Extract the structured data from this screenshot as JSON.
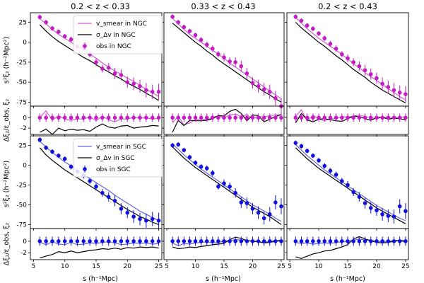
{
  "figure": {
    "column_titles": [
      "0.2 < z < 0.33",
      "0.33 < z < 0.43",
      "0.2 < z < 0.43"
    ],
    "ylabel_main": "s²ξ₂ (h⁻²Mpc²)",
    "ylabel_resid": "Δξ₂/ε_obs, ξ₂",
    "xlabel": "s (h⁻¹Mpc)"
  },
  "legends": {
    "ngc": [
      "v_smear in NGC",
      "σ_Δv in NGC",
      "obs in NGC"
    ],
    "sgc": [
      "v_smear in SGC",
      "σ_Δv in SGC",
      "obs in SGC"
    ]
  },
  "colors": {
    "ngc_obs": "#c41cc4",
    "ngc_model": "#d45bd4",
    "sgc_obs": "#1010dd",
    "sgc_model": "#6464e8",
    "sigma": "#000000"
  },
  "chart_data": {
    "type": "line",
    "x": [
      6,
      7,
      8,
      9,
      10,
      11,
      12,
      13,
      14,
      15,
      16,
      17,
      18,
      19,
      20,
      21,
      22,
      23,
      24,
      25
    ],
    "xlim": [
      4.5,
      25.5
    ],
    "xticks": [
      5,
      10,
      15,
      20,
      25
    ],
    "main_ylim": [
      -80,
      37
    ],
    "main_yticks": [
      25,
      0,
      -25,
      -50,
      -75
    ],
    "resid_ylim": [
      -3.2,
      2.2
    ],
    "resid_yticks": [
      0,
      -2
    ],
    "panels": [
      {
        "region": "NGC",
        "column": 0,
        "obs": [
          31.5,
          25,
          17.5,
          13.2,
          7.5,
          3.5,
          -5.5,
          -6,
          -15,
          -25,
          -33,
          -32,
          -39,
          -41,
          -50,
          -52,
          -55,
          -60,
          -62,
          -62
        ],
        "err": [
          3,
          3,
          3,
          3,
          3,
          3.5,
          3.5,
          4,
          4,
          5,
          5,
          6,
          7,
          7,
          7,
          8,
          8,
          9,
          9,
          10
        ],
        "vsmear": [
          30,
          23,
          16,
          10,
          5,
          0,
          -5,
          -10,
          -15,
          -20,
          -26,
          -31,
          -36,
          -40,
          -45,
          -49,
          -54,
          -59,
          -63,
          -68
        ],
        "sigma": [
          22,
          14,
          7,
          1,
          -4,
          -9,
          -14,
          -19,
          -23,
          -28,
          -33,
          -37,
          -42,
          -46,
          -51,
          -55,
          -59,
          -64,
          -68,
          -73
        ]
      },
      {
        "region": "NGC",
        "column": 1,
        "obs": [
          32,
          25,
          19,
          14,
          9,
          3,
          -3,
          -8,
          -15,
          -19,
          -24,
          -25,
          -30,
          -39,
          -51,
          -55,
          -59,
          -62,
          -70,
          -80
        ],
        "err": [
          3,
          3,
          3,
          3,
          3,
          3.5,
          3.5,
          4,
          4,
          5,
          5,
          6,
          7,
          7,
          7,
          8,
          8,
          9,
          9,
          10
        ],
        "vsmear": [
          30,
          23,
          16,
          10,
          5,
          0,
          -5,
          -10,
          -15,
          -20,
          -26,
          -31,
          -36,
          -41,
          -46,
          -51,
          -56,
          -61,
          -66,
          -71
        ],
        "sigma": [
          24,
          18,
          12,
          6,
          0,
          -5,
          -11,
          -16,
          -22,
          -27,
          -32,
          -37,
          -42,
          -47,
          -52,
          -57,
          -62,
          -66,
          -71,
          -75
        ]
      },
      {
        "region": "NGC",
        "column": 2,
        "obs": [
          32,
          27,
          21,
          17,
          11,
          5,
          -2,
          -8,
          -15,
          -20,
          -25,
          -30,
          -35,
          -40,
          -45,
          -52,
          -56,
          -60,
          -63,
          -65
        ],
        "err": [
          3,
          3,
          3,
          3,
          3,
          3.5,
          3.5,
          4,
          4,
          5,
          5,
          6,
          7,
          7,
          7,
          8,
          8,
          9,
          9,
          10
        ],
        "vsmear": [
          31,
          24,
          17,
          11,
          5,
          0,
          -5,
          -10,
          -15,
          -21,
          -27,
          -32,
          -38,
          -43,
          -48,
          -53,
          -58,
          -63,
          -68,
          -72
        ],
        "sigma": [
          25,
          18,
          12,
          6,
          0,
          -5,
          -11,
          -17,
          -22,
          -28,
          -34,
          -39,
          -44,
          -50,
          -55,
          -60,
          -64,
          -68,
          -72,
          -76
        ]
      },
      {
        "region": "SGC",
        "column": 0,
        "obs": [
          32,
          22,
          17,
          12,
          8,
          -2,
          -8,
          -13,
          -20,
          -27,
          -35,
          -40,
          -45,
          -55,
          -60,
          -65,
          -68,
          -70,
          -68,
          -70
        ],
        "err": [
          3,
          3,
          3,
          3,
          3,
          3.5,
          3.5,
          4,
          4,
          5,
          5,
          6,
          7,
          7,
          7,
          8,
          8,
          9,
          9,
          10
        ],
        "vsmear": [
          30,
          23,
          16,
          10,
          4,
          -1,
          -7,
          -12,
          -17,
          -22,
          -27,
          -32,
          -38,
          -43,
          -48,
          -53,
          -58,
          -62,
          -66,
          -70
        ],
        "sigma": [
          22,
          13,
          6,
          0,
          -6,
          -11,
          -16,
          -21,
          -26,
          -31,
          -36,
          -41,
          -46,
          -51,
          -56,
          -60,
          -65,
          -68,
          -72,
          -75
        ]
      },
      {
        "region": "SGC",
        "column": 1,
        "obs": [
          25,
          26,
          19,
          10,
          3,
          -2,
          -4,
          -10,
          -27,
          -23,
          -27,
          -35,
          -47,
          -48,
          -55,
          -60,
          -67,
          -62,
          -47,
          -52
        ],
        "err": [
          3,
          3,
          3,
          3,
          3,
          3.5,
          3.5,
          4,
          4,
          5,
          5,
          6,
          7,
          7,
          7,
          8,
          8,
          9,
          9,
          10
        ],
        "vsmear": [
          27,
          20,
          13,
          7,
          1,
          -5,
          -10,
          -15,
          -20,
          -25,
          -30,
          -35,
          -40,
          -45,
          -50,
          -54,
          -58,
          -62,
          -67,
          -71
        ],
        "sigma": [
          23,
          16,
          9,
          3,
          -3,
          -8,
          -13,
          -18,
          -23,
          -28,
          -33,
          -38,
          -43,
          -48,
          -53,
          -57,
          -61,
          -65,
          -70,
          -75
        ]
      },
      {
        "region": "SGC",
        "column": 2,
        "obs": [
          28,
          24,
          18,
          12,
          6,
          -1,
          -7,
          -12,
          -20,
          -25,
          -34,
          -40,
          -48,
          -54,
          -57,
          -62,
          -64,
          -65,
          -52,
          -58
        ],
        "err": [
          3,
          3,
          3,
          3,
          3,
          3.5,
          3.5,
          4,
          4,
          5,
          5,
          6,
          7,
          7,
          7,
          8,
          8,
          9,
          9,
          10
        ],
        "vsmear": [
          26,
          19,
          12,
          6,
          0,
          -6,
          -11,
          -16,
          -21,
          -26,
          -31,
          -36,
          -41,
          -46,
          -51,
          -55,
          -59,
          -63,
          -67,
          -70
        ],
        "sigma": [
          22,
          15,
          8,
          2,
          -4,
          -9,
          -14,
          -19,
          -24,
          -29,
          -34,
          -39,
          -44,
          -49,
          -54,
          -58,
          -62,
          -66,
          -70,
          -74
        ]
      }
    ],
    "residuals": [
      {
        "region": "NGC",
        "column": 0,
        "obs": [
          0,
          0,
          0,
          0,
          0,
          0,
          0,
          0,
          0,
          0,
          0,
          0,
          0,
          0,
          0,
          0,
          0,
          0,
          0,
          0
        ],
        "err": [
          0.8,
          0.8,
          0.8,
          0.8,
          0.8,
          0.8,
          0.8,
          0.8,
          0.8,
          0.8,
          0.8,
          0.8,
          0.8,
          0.8,
          0.8,
          0.8,
          0.8,
          0.8,
          0.8,
          0.8
        ],
        "vsmear": [
          0,
          1.3,
          -0.5,
          0.4,
          -0.3,
          -0.5,
          -0.2,
          -0.3,
          0.2,
          -0.6,
          0.3,
          -0.4,
          -0.8,
          -0.2,
          -0.3,
          0.1,
          -0.1,
          0,
          -0.3,
          -0.1
        ],
        "sigma": [
          -2.8,
          -2.2,
          -3.2,
          -2,
          -2.5,
          -2.2,
          -2.4,
          -2.3,
          -2.6,
          -1.8,
          -1.2,
          -1.8,
          -2,
          -1.6,
          -1.5,
          -2,
          -1.8,
          -1.7,
          -1.5,
          -1.6
        ]
      },
      {
        "region": "NGC",
        "column": 1,
        "obs": [
          0,
          0,
          0,
          0,
          0,
          0,
          0,
          0,
          0,
          0,
          0,
          0,
          0,
          0,
          0,
          0,
          0,
          0,
          0,
          0
        ],
        "err": [
          0.8,
          0.8,
          0.8,
          0.8,
          0.8,
          0.8,
          0.8,
          0.8,
          0.8,
          0.8,
          0.8,
          0.8,
          0.8,
          0.8,
          0.8,
          0.8,
          0.8,
          0.8,
          0.8,
          0.8
        ],
        "vsmear": [
          -1,
          0.3,
          -1.4,
          -1,
          -0.4,
          -0.2,
          -0.5,
          0.1,
          0.3,
          0,
          0.5,
          0.7,
          0.2,
          0.6,
          -0.2,
          0.3,
          0.1,
          0.4,
          0.5,
          0.6
        ],
        "sigma": [
          -2.8,
          -0.5,
          -1.5,
          -0.5,
          -0.6,
          -0.6,
          -0.5,
          -0.2,
          0.4,
          0.3,
          1.2,
          1.6,
          0.8,
          -0.6,
          0.5,
          0.4,
          -0.8,
          -0.3,
          0.2,
          0.6
        ]
      },
      {
        "region": "NGC",
        "column": 2,
        "obs": [
          0,
          0,
          0,
          0,
          0,
          0,
          0,
          0,
          0,
          0,
          0,
          0,
          0,
          0,
          0,
          0,
          0,
          0,
          0,
          0
        ],
        "err": [
          0.8,
          0.8,
          0.8,
          0.8,
          0.8,
          0.8,
          0.8,
          0.8,
          0.8,
          0.8,
          0.8,
          0.8,
          0.8,
          0.8,
          0.8,
          0.8,
          0.8,
          0.8,
          0.8,
          0.8
        ],
        "vsmear": [
          0.2,
          1.5,
          -0.7,
          0.5,
          -0.3,
          -0.6,
          -0.2,
          -0.2,
          0.2,
          0.1,
          0.3,
          0.5,
          0.2,
          0,
          -0.2,
          0.1,
          0,
          0.1,
          0,
          0.2
        ],
        "sigma": [
          -1,
          0.8,
          -0.4,
          -0.8,
          -0.3,
          -0.2,
          -0.4,
          -0.6,
          -0.7,
          -0.2,
          0.3,
          0.2,
          -0.2,
          -0.5,
          0,
          0.1,
          -0.3,
          -0.1,
          -0.2,
          -0.4
        ]
      },
      {
        "region": "SGC",
        "column": 0,
        "obs": [
          0,
          0,
          0,
          0,
          0,
          0,
          0,
          0,
          0,
          0,
          0,
          0,
          0,
          0,
          0,
          0,
          0,
          0,
          0,
          0
        ],
        "err": [
          0.8,
          0.8,
          0.8,
          0.8,
          0.8,
          0.8,
          0.8,
          0.8,
          0.8,
          0.8,
          0.8,
          0.8,
          0.8,
          0.8,
          0.8,
          0.8,
          0.8,
          0.8,
          0.8,
          0.8
        ],
        "vsmear": [
          -0.2,
          -0.6,
          -0.1,
          -0.5,
          -0.6,
          -0.2,
          -0.6,
          -0.5,
          -0.3,
          -0.4,
          -0.2,
          -0.1,
          -0.3,
          -0.6,
          -0.5,
          -0.3,
          -0.4,
          -0.3,
          -0.5,
          -0.4
        ],
        "sigma": [
          -2.9,
          -2.6,
          -2.3,
          -1.8,
          -2,
          -1.7,
          -2,
          -1.8,
          -1.6,
          -1.5,
          -1.3,
          -1.4,
          -1.2,
          -1.4,
          -1.1,
          -1.2,
          -1,
          -1.1,
          -1,
          -1.2
        ]
      },
      {
        "region": "SGC",
        "column": 1,
        "obs": [
          0,
          0,
          0,
          0,
          0,
          0,
          0,
          0,
          0,
          0,
          0,
          0,
          0,
          0,
          0,
          0,
          0,
          0,
          0,
          0
        ],
        "err": [
          0.8,
          0.8,
          0.8,
          0.8,
          0.8,
          0.8,
          0.8,
          0.8,
          0.8,
          0.8,
          0.8,
          0.8,
          0.8,
          0.8,
          0.8,
          0.8,
          0.8,
          0.8,
          0.8,
          0.8
        ],
        "vsmear": [
          -0.3,
          -0.8,
          -0.4,
          -0.5,
          -0.3,
          -0.2,
          -0.1,
          -0.3,
          -0.2,
          0,
          0.1,
          0.3,
          0.2,
          0.1,
          0,
          -0.1,
          -0.2,
          0,
          0.1,
          0.2
        ],
        "sigma": [
          -1,
          -1.3,
          -1.2,
          -1,
          -1.1,
          -0.9,
          -0.8,
          -0.6,
          -0.5,
          -0.4,
          0.3,
          0.7,
          0.5,
          0.1,
          0,
          -0.1,
          -0.3,
          -0.2,
          0,
          0.1
        ]
      },
      {
        "region": "SGC",
        "column": 2,
        "obs": [
          0,
          0,
          0,
          0,
          0,
          0,
          0,
          0,
          0,
          0,
          0,
          0,
          0,
          0,
          0,
          0,
          0,
          0,
          0,
          0
        ],
        "err": [
          0.8,
          0.8,
          0.8,
          0.8,
          0.8,
          0.8,
          0.8,
          0.8,
          0.8,
          0.8,
          0.8,
          0.8,
          0.8,
          0.8,
          0.8,
          0.8,
          0.8,
          0.8,
          0.8,
          0.8
        ],
        "vsmear": [
          -0.2,
          -0.4,
          -0.3,
          -0.5,
          -0.4,
          -0.3,
          -0.4,
          -0.2,
          -0.1,
          0,
          0.2,
          0.4,
          0.2,
          0.1,
          0,
          -0.1,
          0,
          0.1,
          0.2,
          0.1
        ],
        "sigma": [
          -2.7,
          -3,
          -2.6,
          -2.2,
          -2,
          -1.7,
          -1.6,
          -1.3,
          -1,
          -0.6,
          0.4,
          0.8,
          0.4,
          0.1,
          -0.2,
          -0.3,
          -0.2,
          0,
          0.1,
          -0.1
        ]
      }
    ]
  }
}
